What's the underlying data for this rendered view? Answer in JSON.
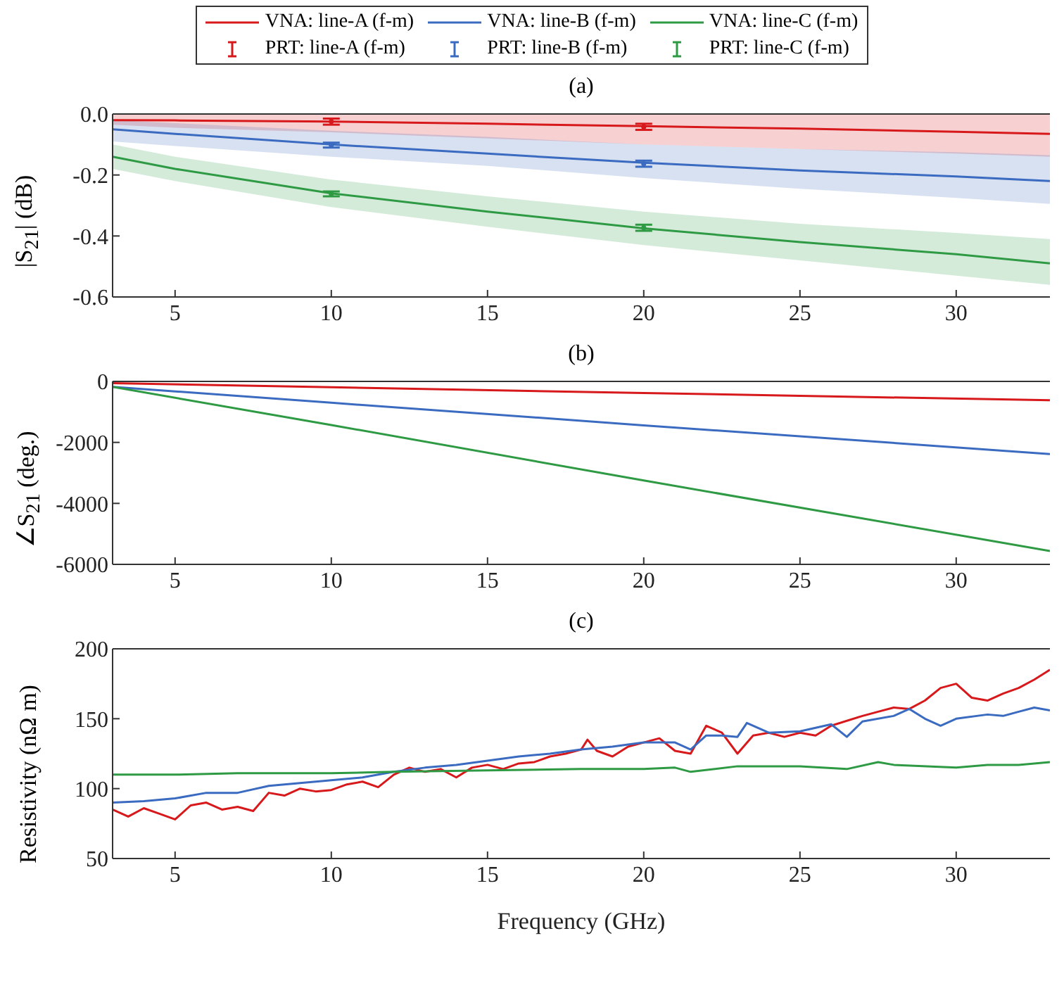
{
  "chart_data": [
    {
      "type": "line",
      "title": "(a)",
      "ylabel": "|S$_{21}$| (dB)",
      "legend": "top",
      "xlim": [
        3,
        33
      ],
      "xticks": [
        5,
        10,
        15,
        20,
        25,
        30
      ],
      "ylim": [
        -0.6,
        0
      ],
      "yticks": [
        {
          "value": 0,
          "label": "0.0"
        },
        -0.2,
        -0.4,
        -0.6
      ],
      "series": [
        {
          "name": "VNA: line-A (f-m)",
          "color": "#d7191c",
          "x": [
            3,
            5,
            10,
            15,
            20,
            25,
            30,
            33
          ],
          "values": [
            -0.02,
            -0.021,
            -0.025,
            -0.032,
            -0.04,
            -0.048,
            -0.058,
            -0.065
          ],
          "upper": [
            0,
            0,
            0,
            0,
            0,
            0,
            0,
            0
          ],
          "lower": [
            -0.035,
            -0.045,
            -0.06,
            -0.08,
            -0.1,
            -0.115,
            -0.13,
            -0.14
          ]
        },
        {
          "name": "VNA: line-B (f-m)",
          "color": "#3a6bc0",
          "x": [
            3,
            5,
            10,
            15,
            20,
            25,
            30,
            33
          ],
          "values": [
            -0.05,
            -0.065,
            -0.1,
            -0.13,
            -0.16,
            -0.185,
            -0.205,
            -0.22
          ],
          "upper": [
            -0.02,
            -0.03,
            -0.055,
            -0.075,
            -0.1,
            -0.115,
            -0.125,
            -0.135
          ],
          "lower": [
            -0.09,
            -0.105,
            -0.14,
            -0.17,
            -0.21,
            -0.245,
            -0.275,
            -0.295
          ]
        },
        {
          "name": "VNA: line-C (f-m)",
          "color": "#2e9a44",
          "x": [
            3,
            5,
            10,
            15,
            20,
            25,
            30,
            33
          ],
          "values": [
            -0.14,
            -0.18,
            -0.26,
            -0.32,
            -0.375,
            -0.42,
            -0.46,
            -0.49
          ],
          "upper": [
            -0.1,
            -0.14,
            -0.215,
            -0.27,
            -0.32,
            -0.36,
            -0.39,
            -0.41
          ],
          "lower": [
            -0.18,
            -0.22,
            -0.305,
            -0.37,
            -0.43,
            -0.48,
            -0.53,
            -0.56
          ]
        },
        {
          "type": "scatter",
          "name": "PRT: line-A (f-m)",
          "color": "#d7191c",
          "x": [
            10,
            20
          ],
          "values": [
            -0.025,
            -0.042
          ],
          "errors": [
            0.01,
            0.01
          ]
        },
        {
          "type": "scatter",
          "name": "PRT: line-B (f-m)",
          "color": "#3a6bc0",
          "x": [
            10,
            20
          ],
          "values": [
            -0.102,
            -0.163
          ],
          "errors": [
            0.008,
            0.01
          ]
        },
        {
          "type": "scatter",
          "name": "PRT: line-C (f-m)",
          "color": "#2e9a44",
          "x": [
            10,
            20
          ],
          "values": [
            -0.262,
            -0.373
          ],
          "errors": [
            0.008,
            0.01
          ]
        }
      ]
    },
    {
      "type": "line",
      "title": "(b)",
      "ylabel": "∠S$_{21}$ (deg.)",
      "xlim": [
        3,
        33
      ],
      "xticks": [
        5,
        10,
        15,
        20,
        25,
        30
      ],
      "ylim": [
        -6000,
        0
      ],
      "yticks": [
        0,
        -2000,
        -4000,
        -6000
      ],
      "series": [
        {
          "color": "#d7191c",
          "x": [
            3,
            10,
            20,
            33
          ],
          "values": [
            -60,
            -190,
            -380,
            -620
          ]
        },
        {
          "color": "#3a6bc0",
          "x": [
            3,
            10,
            20,
            33
          ],
          "values": [
            -180,
            -700,
            -1440,
            -2380
          ]
        },
        {
          "color": "#2e9a44",
          "x": [
            3,
            10,
            20,
            33
          ],
          "values": [
            -180,
            -1430,
            -3250,
            -5560
          ]
        }
      ]
    },
    {
      "type": "line",
      "title": "(c)",
      "xlabel": "Frequency (GHz)",
      "ylabel": "Resistivity (nΩ m)",
      "xlim": [
        3,
        33
      ],
      "xticks": [
        5,
        10,
        15,
        20,
        25,
        30
      ],
      "ylim": [
        50,
        200
      ],
      "yticks": [
        50,
        100,
        150,
        200
      ],
      "series": [
        {
          "color": "#d7191c",
          "x": [
            3,
            3.5,
            4,
            4.5,
            5,
            5.5,
            6,
            6.5,
            7,
            7.5,
            8,
            8.5,
            9,
            9.5,
            10,
            10.5,
            11,
            11.5,
            12,
            12.5,
            13,
            13.5,
            14,
            14.5,
            15,
            15.5,
            16,
            16.5,
            17,
            17.5,
            18,
            18.2,
            18.5,
            19,
            19.5,
            20,
            20.5,
            21,
            21.5,
            22,
            22.5,
            23,
            23.5,
            24,
            24.5,
            25,
            25.5,
            26,
            27,
            27.5,
            28,
            28.5,
            29,
            29.5,
            30,
            30.5,
            31,
            31.5,
            32,
            32.5,
            33
          ],
          "values": [
            85,
            80,
            86,
            82,
            78,
            88,
            90,
            85,
            87,
            84,
            97,
            95,
            100,
            98,
            99,
            103,
            105,
            101,
            110,
            115,
            112,
            114,
            108,
            115,
            117,
            114,
            118,
            119,
            123,
            125,
            128,
            135,
            127,
            123,
            130,
            133,
            136,
            127,
            125,
            145,
            140,
            125,
            138,
            140,
            137,
            140,
            138,
            145,
            152,
            155,
            158,
            157,
            163,
            172,
            175,
            165,
            163,
            168,
            172,
            178,
            185
          ]
        },
        {
          "color": "#3a6bc0",
          "x": [
            3,
            4,
            5,
            6,
            7,
            8,
            9,
            10,
            11,
            12,
            13,
            14,
            15,
            16,
            17,
            18,
            19,
            20,
            21,
            21.5,
            22,
            22.5,
            23,
            23.3,
            24,
            25,
            26,
            26.5,
            27,
            28,
            28.5,
            29,
            29.5,
            30,
            31,
            31.5,
            32,
            32.5,
            33
          ],
          "values": [
            90,
            91,
            93,
            97,
            97,
            102,
            104,
            106,
            108,
            112,
            115,
            117,
            120,
            123,
            125,
            128,
            130,
            133,
            133,
            128,
            138,
            138,
            137,
            147,
            140,
            141,
            146,
            137,
            148,
            152,
            157,
            150,
            145,
            150,
            153,
            152,
            155,
            158,
            156
          ]
        },
        {
          "color": "#2e9a44",
          "x": [
            3,
            5,
            7,
            10,
            12,
            15,
            18,
            20,
            21,
            21.5,
            23,
            25,
            26.5,
            27.5,
            28,
            30,
            31,
            32,
            33
          ],
          "values": [
            110,
            110,
            111,
            111,
            112,
            113,
            114,
            114,
            115,
            112,
            116,
            116,
            114,
            119,
            117,
            115,
            117,
            117,
            119
          ]
        }
      ]
    }
  ]
}
